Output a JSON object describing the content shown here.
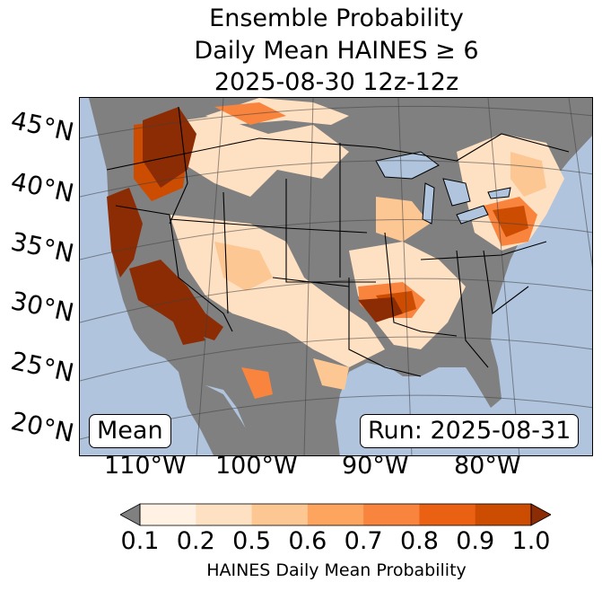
{
  "title": {
    "line1": "Ensemble Probability",
    "line2": "Daily Mean HAINES ≥ 6",
    "line3": "2025-08-30 12z-12z"
  },
  "map": {
    "latitude_labels": [
      "45°N",
      "40°N",
      "35°N",
      "30°N",
      "25°N",
      "20°N"
    ],
    "longitude_labels": [
      "110°W",
      "100°W",
      "90°W",
      "80°W"
    ],
    "stat_box": "Mean",
    "run_box": "Run: 2025-08-31",
    "colors": {
      "ocean": "#b0c4de",
      "outside_data": "#808080",
      "land_low": "#ffffff"
    }
  },
  "colorbar": {
    "label": "HAINES Daily Mean Probability",
    "ticks": [
      "0.1",
      "0.2",
      "0.5",
      "0.6",
      "0.7",
      "0.8",
      "0.9",
      "1.0"
    ],
    "bins": [
      {
        "from": 0.1,
        "to": 0.2,
        "color": "#fff1e3"
      },
      {
        "from": 0.2,
        "to": 0.5,
        "color": "#fee0c2"
      },
      {
        "from": 0.5,
        "to": 0.6,
        "color": "#fdc794"
      },
      {
        "from": 0.6,
        "to": 0.7,
        "color": "#fda55f"
      },
      {
        "from": 0.7,
        "to": 0.8,
        "color": "#f9843d"
      },
      {
        "from": 0.8,
        "to": 0.9,
        "color": "#ea6113"
      },
      {
        "from": 0.9,
        "to": 1.0,
        "color": "#cc4c02"
      }
    ],
    "under_color": "#808080",
    "over_color": "#8b2c04"
  }
}
